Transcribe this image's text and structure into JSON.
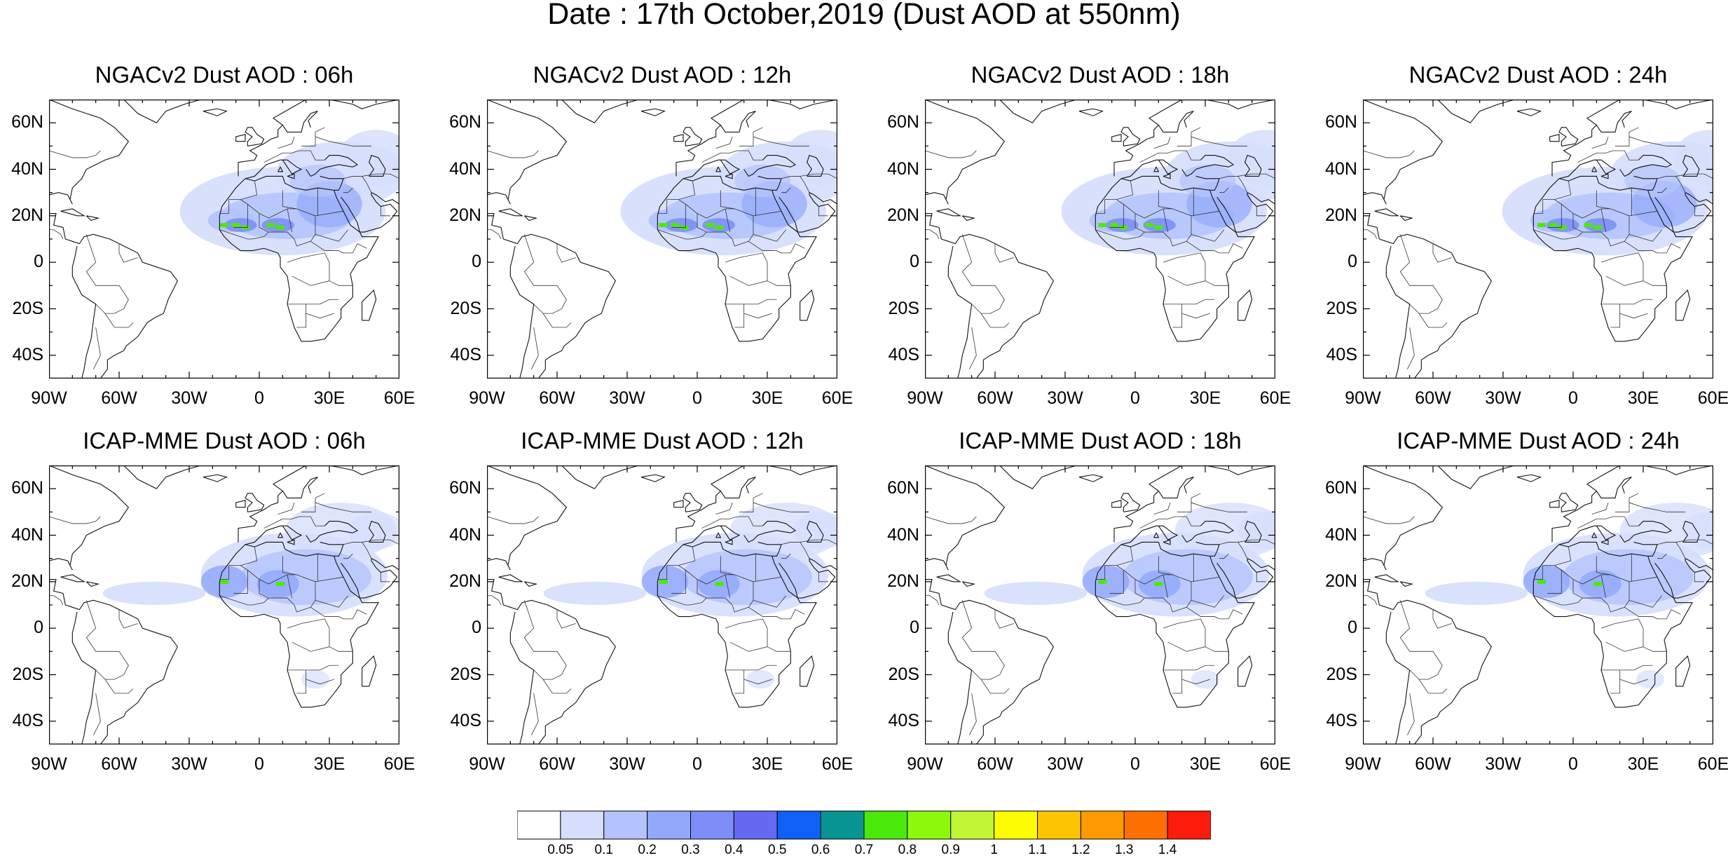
{
  "title": "Date : 17th October,2019 (Dust AOD at 550nm)",
  "panels": [
    {
      "title": "NGACv2 Dust AOD : 06h",
      "row": "NGACv2",
      "hour": "06h"
    },
    {
      "title": "NGACv2 Dust AOD : 12h",
      "row": "NGACv2",
      "hour": "12h"
    },
    {
      "title": "NGACv2 Dust AOD : 18h",
      "row": "NGACv2",
      "hour": "18h"
    },
    {
      "title": "NGACv2 Dust AOD : 24h",
      "row": "NGACv2",
      "hour": "24h"
    },
    {
      "title": "ICAP-MME Dust AOD : 06h",
      "row": "ICAP-MME",
      "hour": "06h"
    },
    {
      "title": "ICAP-MME Dust AOD : 12h",
      "row": "ICAP-MME",
      "hour": "12h"
    },
    {
      "title": "ICAP-MME Dust AOD : 18h",
      "row": "ICAP-MME",
      "hour": "18h"
    },
    {
      "title": "ICAP-MME Dust AOD : 24h",
      "row": "ICAP-MME",
      "hour": "24h"
    }
  ],
  "lat_labels": [
    "60N",
    "40N",
    "20N",
    "0",
    "20S",
    "40S"
  ],
  "lon_labels": [
    "90W",
    "60W",
    "30W",
    "0",
    "30E",
    "60E"
  ],
  "map_extent": {
    "lon": [
      -90,
      60
    ],
    "lat": [
      -50,
      70
    ]
  },
  "colorbar": {
    "colors": [
      "#ffffff",
      "#d6defc",
      "#b4c3fb",
      "#92a8fb",
      "#7d8ef8",
      "#6469f2",
      "#0f61f6",
      "#079493",
      "#4be80c",
      "#8ef80c",
      "#c0f634",
      "#fdfc03",
      "#fcc402",
      "#fc9a02",
      "#fc7002",
      "#fb1c0b"
    ],
    "labels": [
      "0.05",
      "0.1",
      "0.2",
      "0.3",
      "0.4",
      "0.5",
      "0.6",
      "0.7",
      "0.8",
      "0.9",
      "1",
      "1.1",
      "1.2",
      "1.3",
      "1.4"
    ]
  }
}
